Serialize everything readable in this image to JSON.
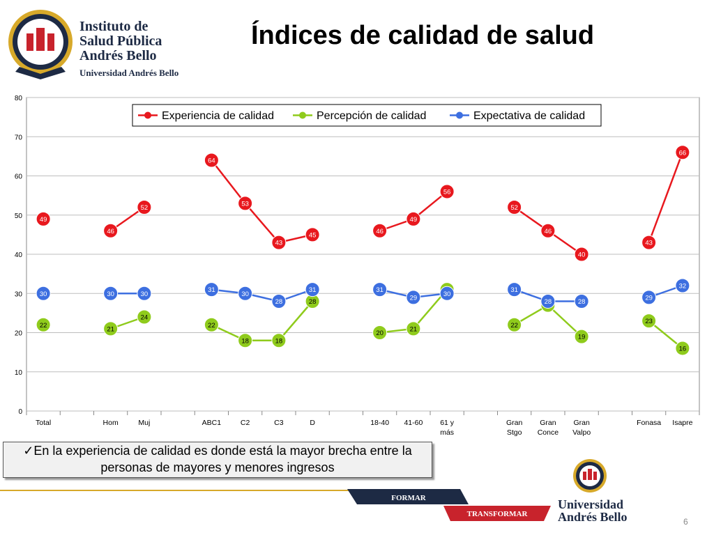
{
  "header": {
    "logo_lines": [
      "Instituto de",
      "Salud Pública",
      "Andrés Bello"
    ],
    "logo_subtitle": "Universidad Andrés Bello",
    "title": "Índices de calidad de salud"
  },
  "chart_data": {
    "type": "line",
    "ylim": [
      0,
      80
    ],
    "yticks": [
      0,
      10,
      20,
      30,
      40,
      50,
      60,
      70,
      80
    ],
    "grid": true,
    "legend_position": "top-right",
    "categories": [
      "Total",
      "",
      "Hom",
      "Muj",
      "",
      "ABC1",
      "C2",
      "C3",
      "D",
      "",
      "18-40",
      "41-60",
      "61 y\nmás",
      "",
      "Gran\nStgo",
      "Gran\nConce",
      "Gran\nValpo",
      "",
      "Fonasa",
      "Isapre"
    ],
    "series": [
      {
        "name": "Experiencia de calidad",
        "color": "#e8181e",
        "values": [
          49,
          null,
          46,
          52,
          null,
          64,
          53,
          43,
          45,
          null,
          46,
          49,
          56,
          null,
          52,
          46,
          40,
          null,
          43,
          66
        ]
      },
      {
        "name": "Percepción de calidad",
        "color": "#8fcb1c",
        "values": [
          22,
          null,
          21,
          24,
          null,
          22,
          18,
          18,
          28,
          null,
          20,
          21,
          31,
          null,
          22,
          27,
          19,
          null,
          23,
          16
        ]
      },
      {
        "name": "Expectativa de calidad",
        "color": "#3d6fe0",
        "values": [
          30,
          null,
          30,
          30,
          null,
          31,
          30,
          28,
          31,
          null,
          31,
          29,
          30,
          null,
          31,
          28,
          28,
          null,
          29,
          32
        ]
      }
    ]
  },
  "note": {
    "text": "✓En la experiencia de calidad es donde está la mayor brecha entre la personas de mayores y menores ingresos"
  },
  "footer": {
    "formar": "FORMAR",
    "transformar": "TRANSFORMAR",
    "brand_lines": [
      "Universidad",
      "Andrés Bello"
    ],
    "page_number": "6"
  },
  "colors": {
    "navy": "#1d2a44",
    "red": "#c8232c",
    "gold": "#d7a92a"
  }
}
